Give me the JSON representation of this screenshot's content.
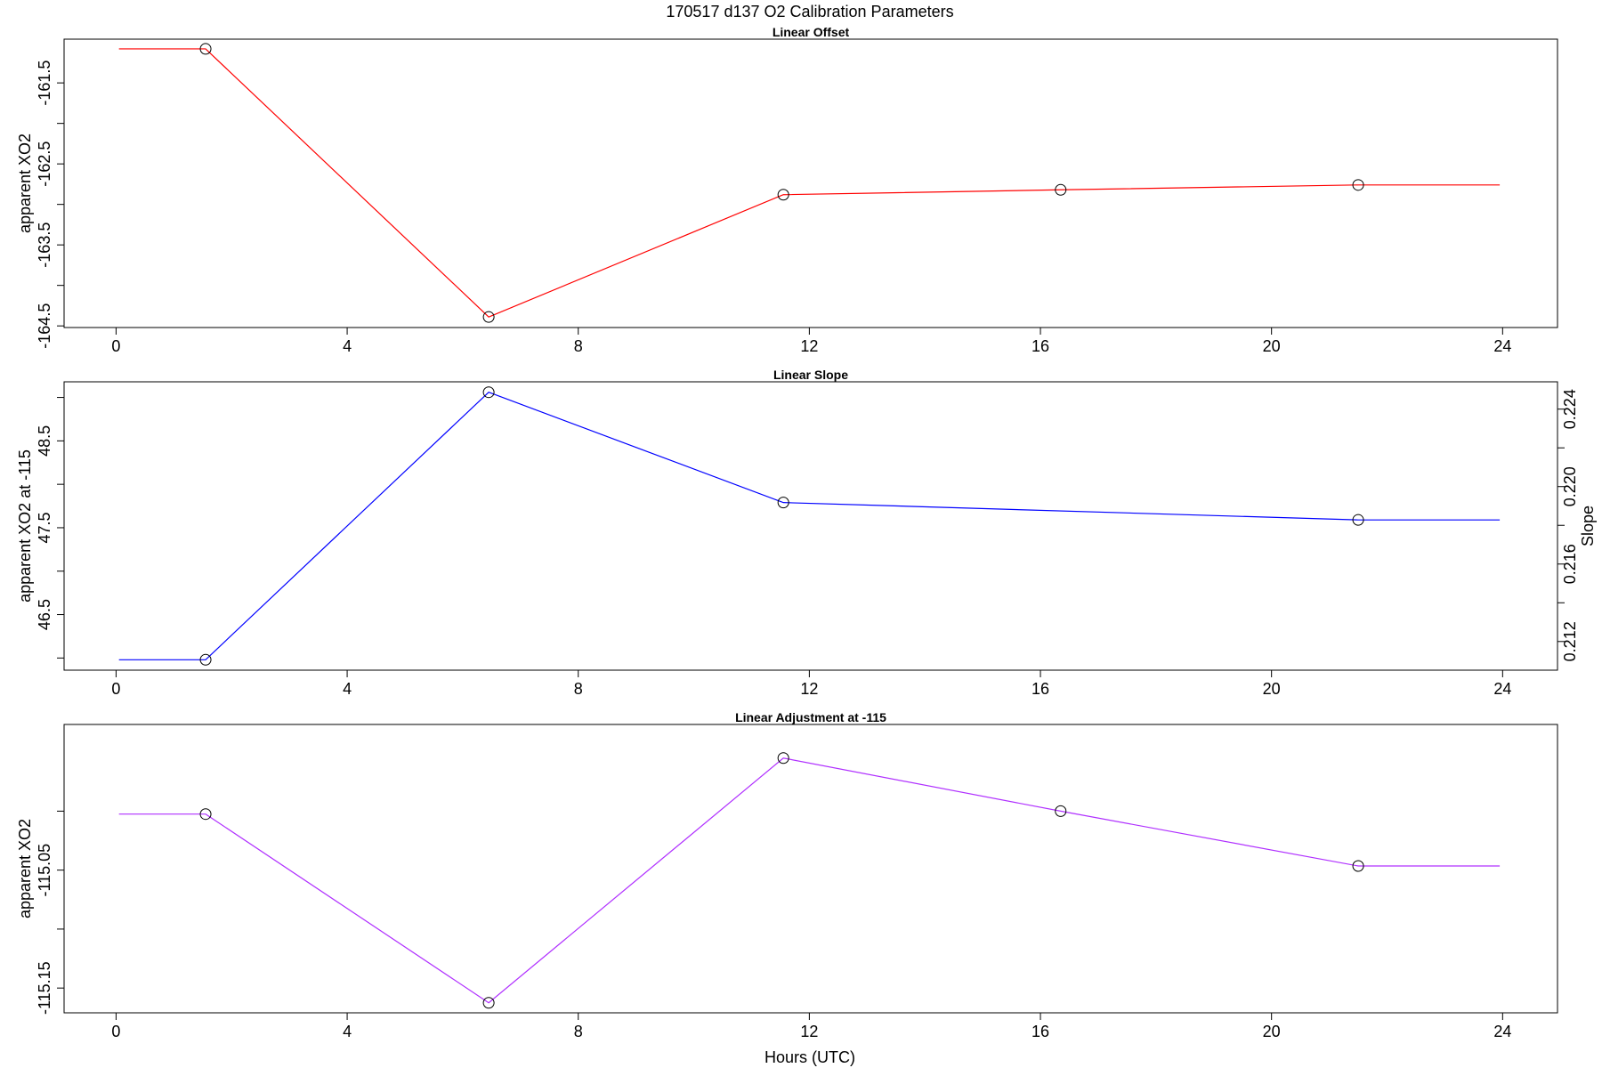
{
  "title": "170517   d137   O2 Calibration Parameters",
  "xlabel": "Hours (UTC)",
  "chart_data": [
    {
      "type": "line",
      "title": "Linear Offset",
      "ylabel": "apparent XO2",
      "xlim": [
        -0.9,
        24.95
      ],
      "ylim": [
        -164.52,
        -160.96
      ],
      "xticks": [
        0,
        4,
        8,
        12,
        16,
        20,
        24
      ],
      "yticks": [
        -164.5,
        -164.0,
        -163.5,
        -163.0,
        -162.5,
        -162.0,
        -161.5
      ],
      "yticklabels": [
        "-164.5",
        "",
        "-163.5",
        "",
        "-162.5",
        "",
        "-161.5"
      ],
      "color": "#ff0000",
      "series": [
        {
          "x": [
            0.05,
            1.55,
            6.45,
            11.55,
            16.35,
            21.5,
            23.95
          ],
          "y": [
            -161.08,
            -161.08,
            -164.39,
            -162.88,
            -162.82,
            -162.76,
            -162.76
          ]
        }
      ],
      "markers": {
        "x": [
          1.55,
          6.45,
          11.55,
          16.35,
          21.5
        ],
        "y": [
          -161.08,
          -164.39,
          -162.88,
          -162.82,
          -162.76
        ]
      }
    },
    {
      "type": "line",
      "title": "Linear Slope",
      "ylabel": "apparent XO2 at -115",
      "y2label": "Slope",
      "xlim": [
        -0.9,
        24.95
      ],
      "ylim": [
        45.86,
        49.18
      ],
      "xticks": [
        0,
        4,
        8,
        12,
        16,
        20,
        24
      ],
      "yticks": [
        46.0,
        46.5,
        47.0,
        47.5,
        48.0,
        48.5,
        49.0
      ],
      "yticklabels": [
        "",
        "46.5",
        "",
        "47.5",
        "",
        "48.5",
        ""
      ],
      "y2lim": [
        0.21052,
        0.22541
      ],
      "y2ticks": [
        0.212,
        0.214,
        0.216,
        0.218,
        0.22,
        0.222,
        0.224
      ],
      "y2ticklabels": [
        "0.212",
        "",
        "0.216",
        "",
        "0.220",
        "",
        "0.224"
      ],
      "color": "#0000ff",
      "series": [
        {
          "x": [
            0.05,
            1.55,
            6.45,
            11.55,
            21.5,
            23.95
          ],
          "y": [
            45.98,
            45.98,
            49.06,
            47.79,
            47.59,
            47.59
          ]
        }
      ],
      "markers": {
        "x": [
          1.55,
          6.45,
          11.55,
          21.5
        ],
        "y": [
          45.98,
          49.06,
          47.79,
          47.59
        ]
      }
    },
    {
      "type": "line",
      "title": "Linear Adjustment at -115",
      "ylabel": "apparent XO2",
      "xlim": [
        -0.9,
        24.95
      ],
      "ylim": [
        -115.171,
        -114.9265
      ],
      "xticks": [
        0,
        4,
        8,
        12,
        16,
        20,
        24
      ],
      "yticks": [
        -115.15,
        -115.1,
        -115.05,
        -115.0
      ],
      "yticklabels": [
        "-115.15",
        "",
        "-115.05",
        ""
      ],
      "color": "#b030ff",
      "series": [
        {
          "x": [
            0.05,
            1.55,
            6.45,
            11.55,
            16.35,
            21.5,
            23.95
          ],
          "y": [
            -115.0025,
            -115.0025,
            -115.1625,
            -114.955,
            -115.0,
            -115.0465,
            -115.0465
          ]
        }
      ],
      "markers": {
        "x": [
          1.55,
          6.45,
          11.55,
          16.35,
          21.5
        ],
        "y": [
          -115.0025,
          -115.1625,
          -114.955,
          -115.0,
          -115.0465
        ]
      }
    }
  ]
}
